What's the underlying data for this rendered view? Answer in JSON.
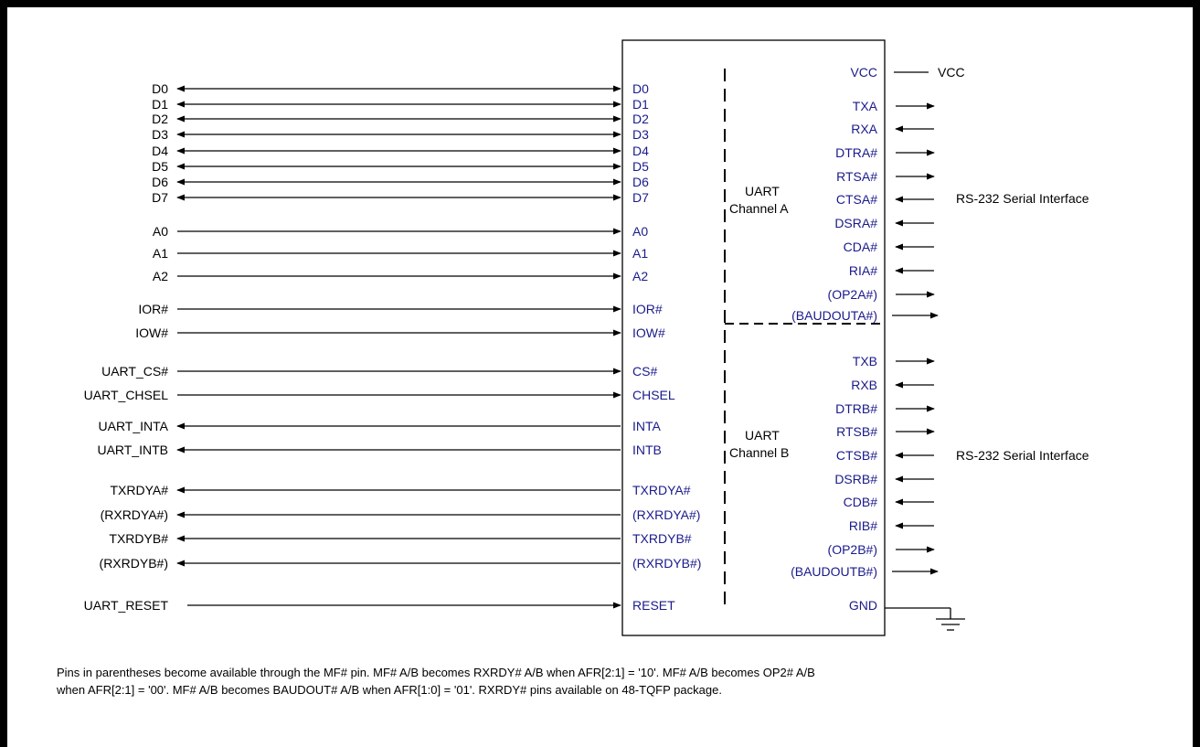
{
  "left_signals": [
    {
      "name": "D0",
      "blue": false,
      "pin": "D0"
    },
    {
      "name": "D1",
      "blue": false,
      "pin": "D1"
    },
    {
      "name": "D2",
      "blue": false,
      "pin": "D2"
    },
    {
      "name": "D3",
      "blue": false,
      "pin": "D3"
    },
    {
      "name": "D4",
      "blue": false,
      "pin": "D4"
    },
    {
      "name": "D5",
      "blue": false,
      "pin": "D5"
    },
    {
      "name": "D6",
      "blue": false,
      "pin": "D6"
    },
    {
      "name": "D7",
      "blue": false,
      "pin": "D7"
    },
    {
      "name": "A0",
      "blue": false,
      "pin": "A0"
    },
    {
      "name": "A1",
      "blue": false,
      "pin": "A1"
    },
    {
      "name": "A2",
      "blue": false,
      "pin": "A2"
    },
    {
      "name": "IOR#",
      "blue": false,
      "pin": "IOR#"
    },
    {
      "name": "IOW#",
      "blue": false,
      "pin": "IOW#"
    },
    {
      "name": "UART_CS#",
      "blue": true,
      "pin": "CS#"
    },
    {
      "name": "UART_CHSEL",
      "blue": true,
      "pin": "CHSEL"
    },
    {
      "name": "UART_INTA",
      "blue": false,
      "pin": "INTA"
    },
    {
      "name": "UART_INTB",
      "blue": false,
      "pin": "INTB"
    },
    {
      "name": "TXRDYA#",
      "blue": false,
      "pin": "TXRDYA#"
    },
    {
      "name": "(RXRDYA#)",
      "blue": false,
      "pin": "(RXRDYA#)"
    },
    {
      "name": "TXRDYB#",
      "blue": false,
      "pin": "TXRDYB#"
    },
    {
      "name": "(RXRDYB#)",
      "blue": false,
      "pin": "(RXRDYB#)"
    },
    {
      "name": "UART_RESET",
      "blue": false,
      "pin": "RESET"
    }
  ],
  "right_pins_a": [
    "VCC",
    "TXA",
    "RXA",
    "DTRA#",
    "RTSA#",
    "CTSA#",
    "DSRA#",
    "CDA#",
    "RIA#",
    "(OP2A#)",
    "(BAUDOUTA#)"
  ],
  "right_pins_b": [
    "TXB",
    "RXB",
    "DTRB#",
    "RTSB#",
    "CTSB#",
    "DSRB#",
    "CDB#",
    "RIB#",
    "(OP2B#)",
    "(BAUDOUTB#)",
    "GND"
  ],
  "vcc_label": "VCC",
  "channel_a": [
    "UART",
    "Channel A"
  ],
  "channel_b": [
    "UART",
    "Channel B"
  ],
  "rs232_a": "RS-232 Serial Interface",
  "rs232_b": "RS-232 Serial Interface",
  "note_lines": [
    "Pins in parentheses become available through the MF# pin. MF# A/B becomes RXRDY# A/B when AFR[2:1] = '10'.  MF# A/B becomes OP2# A/B",
    "when AFR[2:1] = '00'.  MF# A/B becomes BAUDOUT# A/B when AFR[1:0] = '01'. RXRDY# pins available on 48-TQFP package."
  ],
  "colors": {
    "pin_text": "#1a1a8c",
    "line": "#000000"
  }
}
